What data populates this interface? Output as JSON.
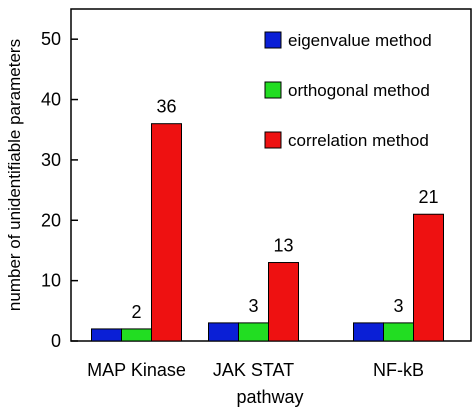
{
  "chart_data": {
    "type": "bar",
    "xlabel": "pathway",
    "ylabel": "number of unidentifiable parameters",
    "ylim": [
      0,
      55
    ],
    "yticks": [
      0,
      10,
      20,
      30,
      40,
      50
    ],
    "categories": [
      "MAP Kinase",
      "JAK STAT",
      "NF-kB"
    ],
    "series": [
      {
        "name": "eigenvalue method",
        "values": [
          2,
          3,
          3
        ],
        "color": "#0a1fd6"
      },
      {
        "name": "orthogonal method",
        "values": [
          2,
          3,
          3
        ],
        "color": "#22dd22"
      },
      {
        "name": "correlation method",
        "values": [
          36,
          13,
          21
        ],
        "color": "#ee1111"
      }
    ],
    "data_labels": [
      {
        "category": 0,
        "text": "2",
        "anchor_value": 2
      },
      {
        "category": 0,
        "text": "36",
        "anchor_value": 36
      },
      {
        "category": 1,
        "text": "3",
        "anchor_value": 3
      },
      {
        "category": 1,
        "text": "13",
        "anchor_value": 13
      },
      {
        "category": 2,
        "text": "3",
        "anchor_value": 3
      },
      {
        "category": 2,
        "text": "21",
        "anchor_value": 21
      }
    ],
    "legend_position": "top-right",
    "grid": false
  }
}
